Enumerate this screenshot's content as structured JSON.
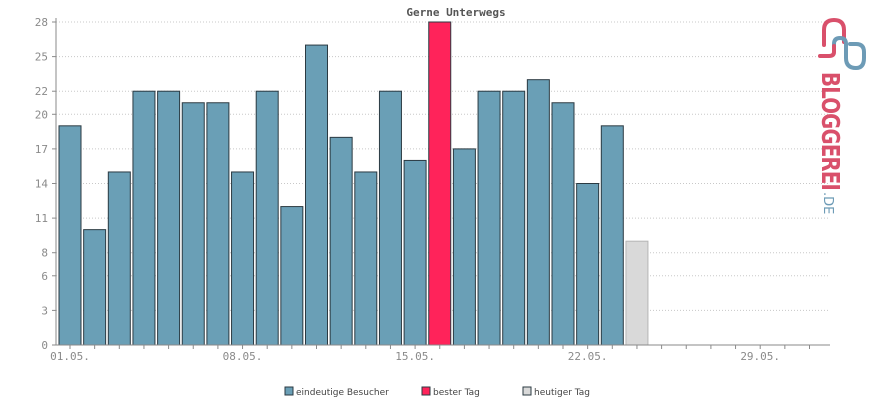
{
  "chart_data": {
    "type": "bar",
    "title": "Gerne Unterwegs",
    "xlabel": "",
    "ylabel": "",
    "ylim": [
      0,
      28
    ],
    "yticks": [
      "0",
      "3",
      "6",
      "8",
      "11",
      "14",
      "17",
      "20",
      "22",
      "25",
      "28"
    ],
    "xtick_labels": [
      "01.05.",
      "08.05.",
      "15.05.",
      "22.05.",
      "29.05."
    ],
    "xtick_days": [
      1,
      8,
      15,
      22,
      29
    ],
    "days_in_month": 31,
    "grid": true,
    "legend_position": "bottom",
    "values": [
      19,
      10,
      15,
      22,
      22,
      21,
      21,
      15,
      22,
      12,
      26,
      18,
      15,
      22,
      16,
      28,
      17,
      22,
      22,
      23,
      21,
      14,
      19,
      9
    ],
    "value_kinds": [
      "visitor",
      "visitor",
      "visitor",
      "visitor",
      "visitor",
      "visitor",
      "visitor",
      "visitor",
      "visitor",
      "visitor",
      "visitor",
      "visitor",
      "visitor",
      "visitor",
      "visitor",
      "best",
      "visitor",
      "visitor",
      "visitor",
      "visitor",
      "visitor",
      "visitor",
      "visitor",
      "today"
    ],
    "legend": [
      {
        "key": "visitor",
        "label": "eindeutige Besucher",
        "color": "#6a9fb6"
      },
      {
        "key": "best",
        "label": "bester Tag",
        "color": "#ff235a"
      },
      {
        "key": "today",
        "label": "heutiger Tag",
        "color": "#d9d9d9"
      }
    ]
  },
  "logo": {
    "text": "BLOGGEREI",
    "suffix": ".DE"
  }
}
